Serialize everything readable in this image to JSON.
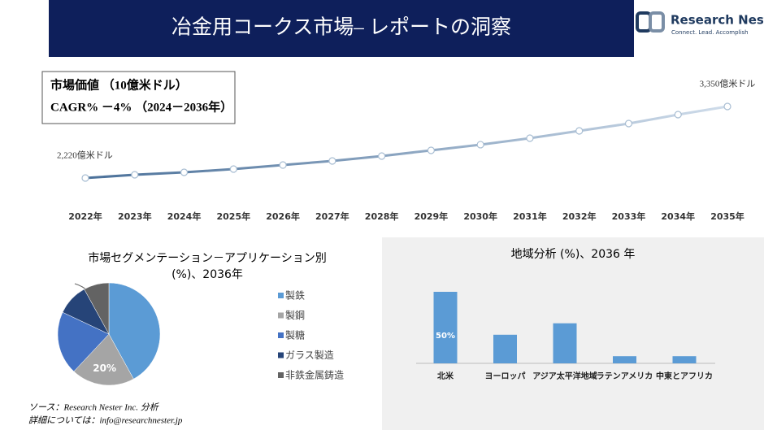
{
  "header": {
    "title": "冶金用コークス市場– レポートの洞察",
    "logo_name": "Research Nester",
    "logo_tagline": "Connect. Lead. Accomplish"
  },
  "chart_data": [
    {
      "type": "line",
      "title": "市場価値 （10億米ドル）",
      "subtitle": "CAGR% －4% （2024－2036年）",
      "categories": [
        "2022年",
        "2023年",
        "2024年",
        "2025年",
        "2026年",
        "2027年",
        "2028年",
        "2029年",
        "2030年",
        "2031年",
        "2032年",
        "2033年",
        "2034年",
        "2035年"
      ],
      "values": [
        2220,
        2271,
        2310,
        2361,
        2425,
        2490,
        2567,
        2657,
        2747,
        2849,
        2965,
        3080,
        3222,
        3350
      ],
      "value_labels": [
        "2,220億米ドル",
        null,
        null,
        null,
        null,
        null,
        null,
        null,
        null,
        null,
        null,
        null,
        null,
        "3,350億米ドル"
      ],
      "color": "#4a7099"
    },
    {
      "type": "pie",
      "title": "市場セグメンテーション－アプリケーション別 (%)、2036年",
      "categories": [
        "製鉄",
        "製鋼",
        "製糖",
        "ガラス製造",
        "非鉄金属鋳造"
      ],
      "values": [
        42,
        20,
        20,
        10,
        8
      ],
      "value_labels": [
        null,
        "20%",
        null,
        null,
        null
      ],
      "colors": [
        "#5b9bd5",
        "#a5a5a5",
        "#4472c4",
        "#264478",
        "#636363"
      ]
    },
    {
      "type": "bar",
      "title": "地域分析 (%)、2036 年",
      "categories": [
        "北米",
        "ヨーロッパ",
        "アジア太平洋地域",
        "ラテンアメリカ",
        "中東とアフリカ"
      ],
      "values": [
        50,
        20,
        28,
        5,
        5
      ],
      "value_labels": [
        "50%",
        null,
        null,
        null,
        null
      ],
      "color": "#5b9bd5"
    }
  ],
  "footer": {
    "source": "ソース：Research Nester Inc. 分析",
    "contact": "詳細については：info@researchnester.jp"
  }
}
